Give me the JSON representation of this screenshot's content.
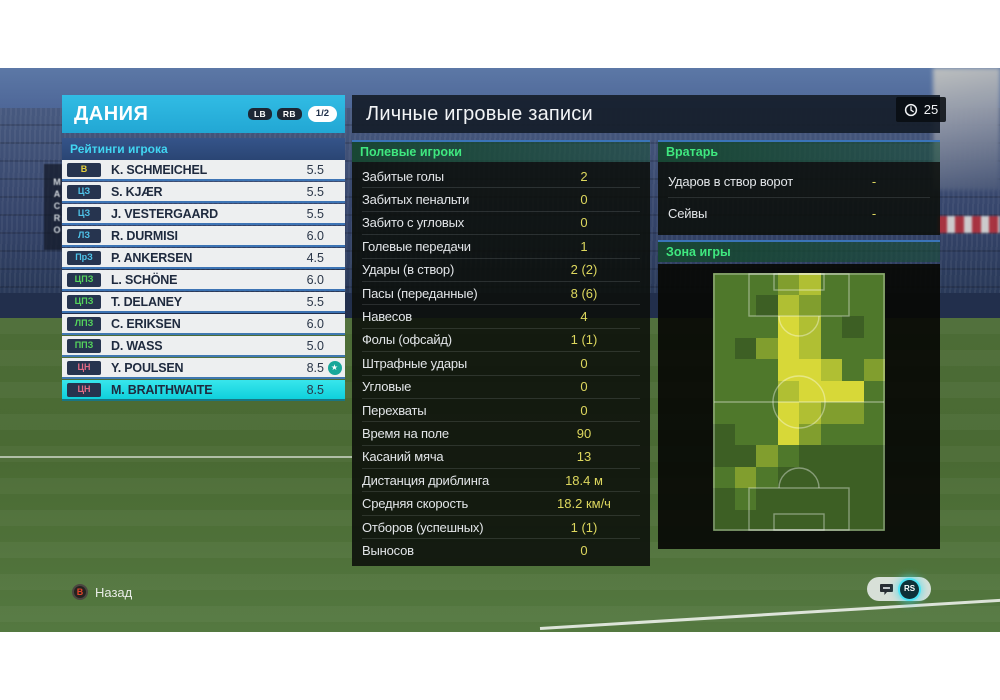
{
  "meta": {
    "clock": "25"
  },
  "colors": {
    "header_cyan": "#29b2dd",
    "selected_cyan": "#12dbe2",
    "value_yellow": "#ddd75e",
    "section_green": "#3fe87f",
    "separator_blue": "#3e7abe"
  },
  "team_panel": {
    "team_name": "ДАНИЯ",
    "buttons": {
      "lb": "LB",
      "rb": "RB",
      "page": "1/2"
    },
    "ratings_header": "Рейтинги игрока",
    "players": [
      {
        "pos": "В",
        "pos_color": "#e3cf3d",
        "name": "K. SCHMEICHEL",
        "rating": "5.5",
        "star": false,
        "selected": false
      },
      {
        "pos": "ЦЗ",
        "pos_color": "#4fc4ea",
        "name": "S. KJÆR",
        "rating": "5.5",
        "star": false,
        "selected": false
      },
      {
        "pos": "ЦЗ",
        "pos_color": "#4fc4ea",
        "name": "J. VESTERGAARD",
        "rating": "5.5",
        "star": false,
        "selected": false
      },
      {
        "pos": "ЛЗ",
        "pos_color": "#4fc4ea",
        "name": "R. DURMISI",
        "rating": "6.0",
        "star": false,
        "selected": false
      },
      {
        "pos": "ПрЗ",
        "pos_color": "#4fc4ea",
        "name": "P. ANKERSEN",
        "rating": "4.5",
        "star": false,
        "selected": false
      },
      {
        "pos": "ЦПЗ",
        "pos_color": "#55d45c",
        "name": "L. SCHÖNE",
        "rating": "6.0",
        "star": false,
        "selected": false
      },
      {
        "pos": "ЦПЗ",
        "pos_color": "#55d45c",
        "name": "T. DELANEY",
        "rating": "5.5",
        "star": false,
        "selected": false
      },
      {
        "pos": "ЛПЗ",
        "pos_color": "#55d45c",
        "name": "C. ERIKSEN",
        "rating": "6.0",
        "star": false,
        "selected": false
      },
      {
        "pos": "ППЗ",
        "pos_color": "#55d45c",
        "name": "D. WASS",
        "rating": "5.0",
        "star": false,
        "selected": false
      },
      {
        "pos": "ЦН",
        "pos_color": "#e06a84",
        "name": "Y. POULSEN",
        "rating": "8.5",
        "star": true,
        "selected": false
      },
      {
        "pos": "ЦН",
        "pos_color": "#e06a84",
        "name": "M. BRAITHWAITE",
        "rating": "8.5",
        "star": false,
        "selected": true
      }
    ]
  },
  "main": {
    "title": "Личные игровые записи",
    "field_section": {
      "header": "Полевые игроки",
      "stats": [
        {
          "label": "Забитые голы",
          "value": "2"
        },
        {
          "label": "Забитых пенальти",
          "value": "0"
        },
        {
          "label": "Забито с угловых",
          "value": "0"
        },
        {
          "label": "Голевые передачи",
          "value": "1"
        },
        {
          "label": "Удары (в створ)",
          "value": "2 (2)"
        },
        {
          "label": "Пасы (переданные)",
          "value": "8 (6)"
        },
        {
          "label": "Навесов",
          "value": "4"
        },
        {
          "label": "Фолы (офсайд)",
          "value": "1 (1)"
        },
        {
          "label": "Штрафные удары",
          "value": "0"
        },
        {
          "label": "Угловые",
          "value": "0"
        },
        {
          "label": "Перехваты",
          "value": "0"
        },
        {
          "label": "Время на поле",
          "value": "90"
        },
        {
          "label": "Касаний мяча",
          "value": "13"
        },
        {
          "label": "Дистанция дриблинга",
          "value": "18.4 м"
        },
        {
          "label": "Средняя скорость",
          "value": "18.2 км/ч"
        },
        {
          "label": "Отборов (успешных)",
          "value": "1 (1)"
        },
        {
          "label": "Выносов",
          "value": "0"
        }
      ]
    },
    "gk_section": {
      "header": "Вратарь",
      "stats": [
        {
          "label": "Ударов в створ ворот",
          "value": "-"
        },
        {
          "label": "Сейвы",
          "value": "-"
        }
      ]
    },
    "zone_section": {
      "header": "Зона игры"
    }
  },
  "heatmap": {
    "type": "heatmap",
    "cols": 8,
    "rows": 12,
    "palette": {
      "0": "#33511d",
      "1": "#3d5f24",
      "2": "#4f782b",
      "3": "#819e2e",
      "4": "#b0bf33",
      "5": "#d7d838"
    },
    "cells": [
      [
        2,
        2,
        2,
        3,
        4,
        2,
        2,
        2
      ],
      [
        2,
        2,
        1,
        4,
        3,
        2,
        2,
        2
      ],
      [
        2,
        2,
        2,
        5,
        4,
        2,
        1,
        2
      ],
      [
        2,
        1,
        3,
        5,
        4,
        2,
        2,
        2
      ],
      [
        2,
        2,
        2,
        5,
        5,
        4,
        2,
        3
      ],
      [
        2,
        2,
        2,
        4,
        5,
        5,
        5,
        2
      ],
      [
        2,
        2,
        2,
        5,
        4,
        3,
        3,
        2
      ],
      [
        1,
        2,
        2,
        5,
        3,
        2,
        2,
        2
      ],
      [
        1,
        1,
        3,
        2,
        1,
        1,
        1,
        1
      ],
      [
        2,
        3,
        2,
        1,
        1,
        1,
        1,
        1
      ],
      [
        1,
        2,
        1,
        1,
        1,
        1,
        1,
        1
      ],
      [
        1,
        1,
        1,
        1,
        1,
        1,
        1,
        1
      ]
    ]
  },
  "footer": {
    "back_button": "B",
    "back_label": "Назад",
    "rs_label": "RS"
  },
  "background": {
    "banner_text": "MACRO"
  }
}
